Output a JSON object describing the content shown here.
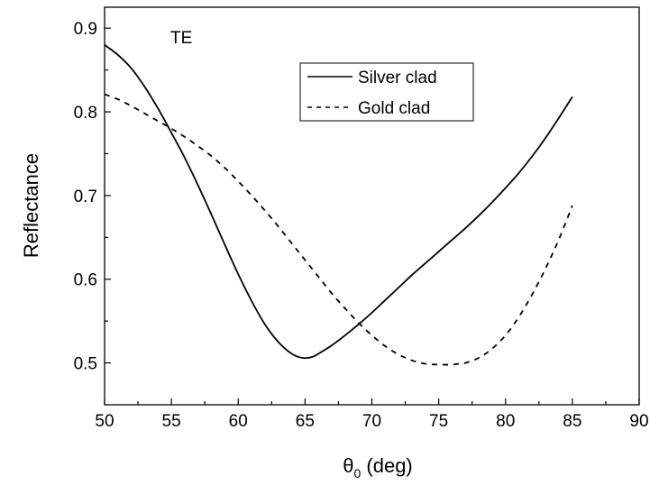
{
  "chart_data": {
    "type": "line",
    "title": "",
    "xlabel_symbol": "θ",
    "xlabel_subscript": "0",
    "xlabel_unit": " (deg)",
    "ylabel": "Reflectance",
    "xlim": [
      50,
      90
    ],
    "ylim": [
      0.45,
      0.925
    ],
    "x_ticks": [
      "50",
      "55",
      "60",
      "65",
      "70",
      "75",
      "80",
      "85",
      "90"
    ],
    "y_ticks": [
      "0.5",
      "0.6",
      "0.7",
      "0.8",
      "0.9"
    ],
    "annotation": "TE",
    "legend_position": "top-center",
    "grid": false,
    "series": [
      {
        "name": "Silver clad",
        "style": "solid",
        "color": "#000000",
        "x": [
          50,
          51,
          52,
          53,
          54,
          55,
          56,
          57,
          58,
          59,
          60,
          61,
          62,
          63,
          64,
          64.8,
          65.5,
          66,
          67,
          68,
          69,
          70,
          71,
          72,
          73,
          74,
          75,
          76,
          77,
          78,
          79,
          80,
          81,
          82,
          83,
          84,
          85
        ],
        "y": [
          0.88,
          0.868,
          0.852,
          0.83,
          0.804,
          0.775,
          0.745,
          0.712,
          0.677,
          0.641,
          0.606,
          0.574,
          0.546,
          0.525,
          0.511,
          0.506,
          0.507,
          0.511,
          0.521,
          0.533,
          0.546,
          0.56,
          0.575,
          0.59,
          0.605,
          0.619,
          0.633,
          0.647,
          0.661,
          0.676,
          0.692,
          0.709,
          0.727,
          0.747,
          0.769,
          0.793,
          0.818
        ]
      },
      {
        "name": "Gold clad",
        "style": "dashed",
        "color": "#000000",
        "x": [
          50,
          51,
          52,
          53,
          54,
          55,
          56,
          57,
          58,
          59,
          60,
          61,
          62,
          63,
          64,
          65,
          66,
          67,
          68,
          69,
          70,
          71,
          72,
          73,
          74,
          75,
          76,
          76.5,
          77,
          78,
          79,
          80,
          81,
          82,
          83,
          84,
          85
        ],
        "y": [
          0.821,
          0.815,
          0.807,
          0.798,
          0.789,
          0.78,
          0.77,
          0.759,
          0.747,
          0.733,
          0.717,
          0.7,
          0.682,
          0.663,
          0.643,
          0.623,
          0.603,
          0.583,
          0.565,
          0.548,
          0.533,
          0.52,
          0.51,
          0.503,
          0.499,
          0.498,
          0.498,
          0.499,
          0.5,
          0.506,
          0.517,
          0.533,
          0.555,
          0.582,
          0.613,
          0.648,
          0.688
        ]
      }
    ]
  }
}
